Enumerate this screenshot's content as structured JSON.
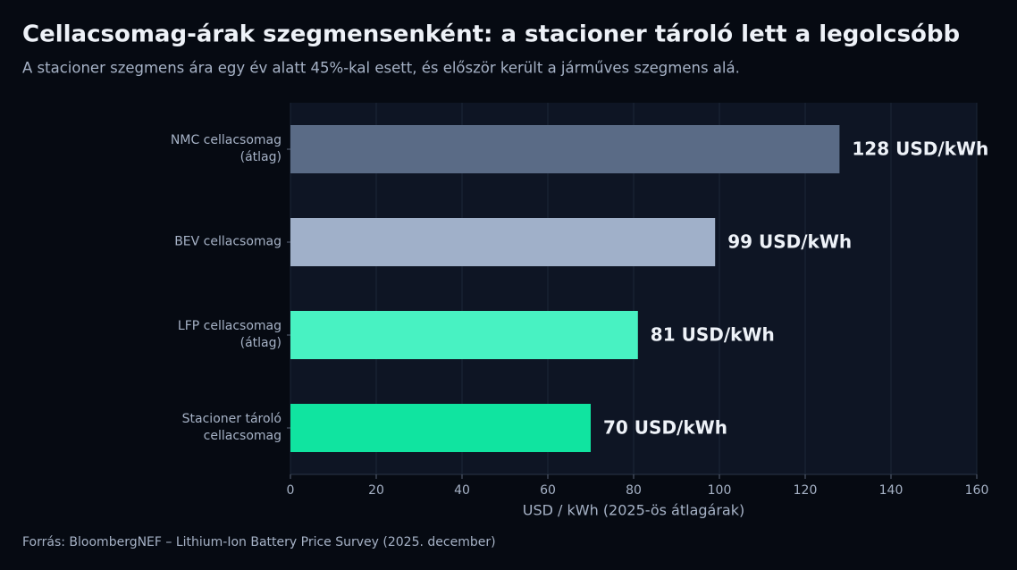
{
  "chart_data": {
    "type": "barh",
    "title": "Cellacsomag-árak szegmensenként: a stacioner tároló lett a legolcsóbb",
    "subtitle": "A stacioner szegmens ára egy év alatt 45%-kal esett, és először került a járműves szegmens alá.",
    "categories": [
      "NMC cellacsomag\n(átlag)",
      "BEV cellacsomag",
      "LFP cellacsomag\n(átlag)",
      "Stacioner tároló\ncellacsomag"
    ],
    "values": [
      128,
      99,
      81,
      70
    ],
    "value_labels": [
      "128 USD/kWh",
      "99 USD/kWh",
      "81 USD/kWh",
      "70 USD/kWh"
    ],
    "colors": [
      "#5a6b86",
      "#a0b0c9",
      "#48f2c2",
      "#10e4a0"
    ],
    "xlabel": "USD / kWh (2025-ös átlagárak)",
    "xlim": [
      0,
      160
    ],
    "xticks": [
      0,
      20,
      40,
      60,
      80,
      100,
      120,
      140,
      160
    ],
    "grid": true,
    "source": "Forrás: BloombergNEF – Lithium-Ion Battery Price Survey (2025. december)"
  }
}
